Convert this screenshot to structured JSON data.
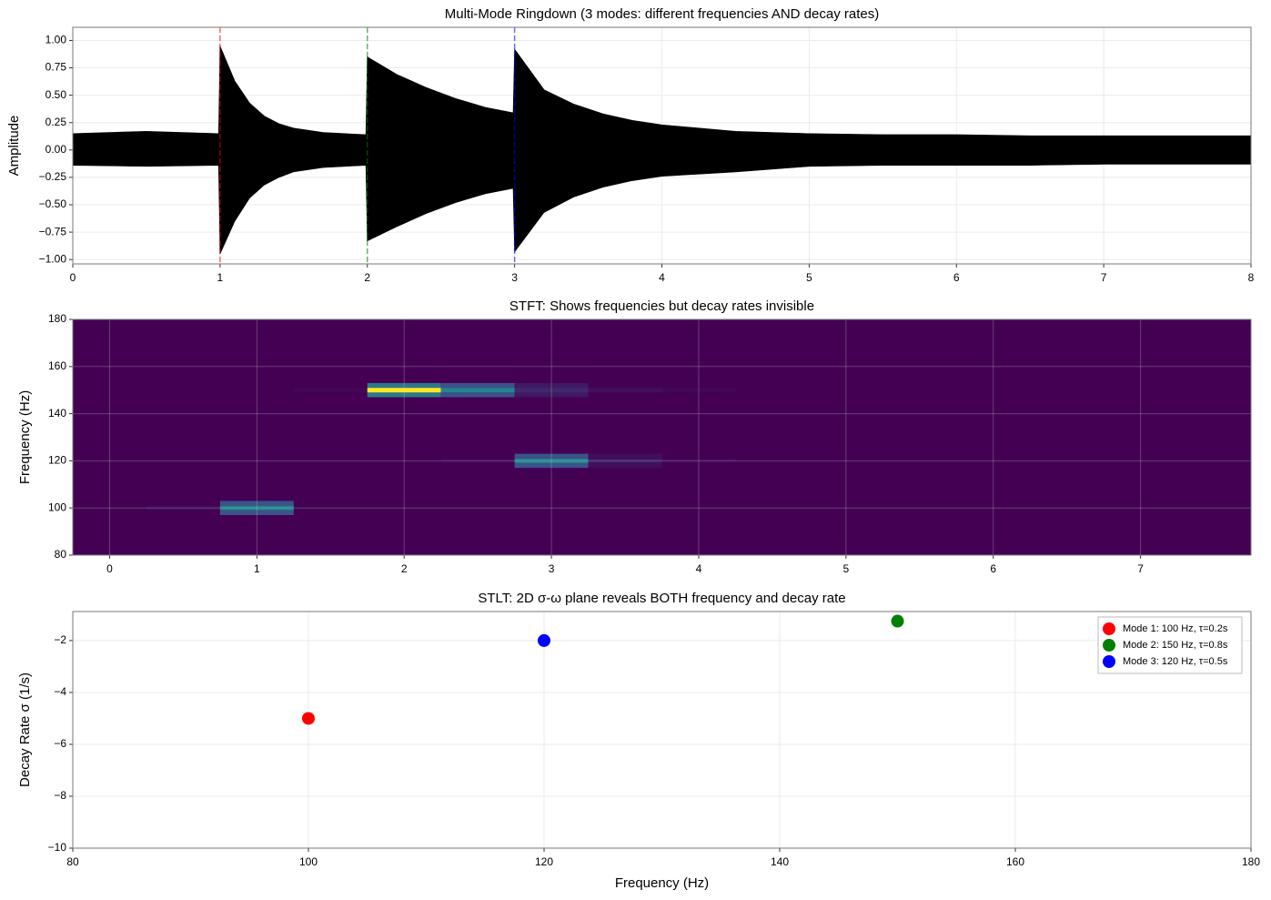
{
  "chart_data": [
    {
      "type": "envelope",
      "title": "Multi-Mode Ringdown (3 modes: different frequencies AND decay rates)",
      "ylabel": "Amplitude",
      "x": [
        0,
        0.5,
        0.99,
        1,
        1.1,
        1.2,
        1.3,
        1.4,
        1.5,
        1.7,
        1.99,
        2,
        2.2,
        2.4,
        2.6,
        2.8,
        2.99,
        3,
        3.2,
        3.4,
        3.6,
        3.8,
        4,
        4.5,
        5,
        5.5,
        6,
        6.5,
        7,
        7.5,
        8
      ],
      "series": [
        {
          "color": "#000000",
          "values": [
            0.15,
            0.17,
            0.15,
            0.95,
            0.63,
            0.43,
            0.31,
            0.24,
            0.2,
            0.16,
            0.14,
            0.85,
            0.69,
            0.57,
            0.47,
            0.39,
            0.34,
            0.92,
            0.55,
            0.42,
            0.33,
            0.27,
            0.23,
            0.17,
            0.15,
            0.14,
            0.14,
            0.13,
            0.13,
            0.13,
            0.13
          ]
        },
        {
          "color": "#000000",
          "values": [
            -0.14,
            -0.15,
            -0.14,
            -0.95,
            -0.65,
            -0.44,
            -0.32,
            -0.25,
            -0.2,
            -0.16,
            -0.14,
            -0.83,
            -0.7,
            -0.58,
            -0.48,
            -0.4,
            -0.35,
            -0.93,
            -0.57,
            -0.43,
            -0.34,
            -0.28,
            -0.24,
            -0.2,
            -0.15,
            -0.14,
            -0.14,
            -0.14,
            -0.13,
            -0.13,
            -0.13
          ]
        }
      ],
      "vlines": [
        {
          "x": 1,
          "color": "#ff0000"
        },
        {
          "x": 2,
          "color": "#008000"
        },
        {
          "x": 3,
          "color": "#0000ff"
        }
      ],
      "xlim": [
        0,
        8
      ],
      "xticks": [
        0,
        1,
        2,
        3,
        4,
        5,
        6,
        7,
        8
      ],
      "ylim": [
        -1.04,
        1.12
      ],
      "yticks": [
        {
          "value": -1,
          "label": "−1.00"
        },
        {
          "value": -0.75,
          "label": "−0.75"
        },
        {
          "value": -0.5,
          "label": "−0.50"
        },
        {
          "value": -0.25,
          "label": "−0.25"
        },
        {
          "value": 0,
          "label": "0.00"
        },
        {
          "value": 0.25,
          "label": "0.25"
        },
        {
          "value": 0.5,
          "label": "0.50"
        },
        {
          "value": 0.75,
          "label": "0.75"
        },
        {
          "value": 1,
          "label": "1.00"
        }
      ],
      "grid": true
    },
    {
      "type": "heatmap",
      "title": "STFT: Shows frequencies but decay rates invisible",
      "ylabel": "Frequency (Hz)",
      "colormap": "viridis",
      "x": [
        0.5,
        1,
        1,
        1,
        1.5,
        2,
        2,
        2,
        2.5,
        2.5,
        2.5,
        2.5,
        3,
        3,
        3,
        3,
        3,
        3,
        3.5,
        3.5,
        3.5,
        3.5,
        4,
        4
      ],
      "y": [
        100,
        98,
        100,
        102,
        150,
        148,
        150,
        152,
        148,
        150,
        152,
        120,
        148,
        150,
        152,
        118,
        120,
        122,
        150,
        120,
        118,
        122,
        150,
        120
      ],
      "values": [
        0.03,
        0.25,
        0.45,
        0.25,
        0.02,
        0.4,
        1.0,
        0.4,
        0.25,
        0.45,
        0.25,
        0.02,
        0.07,
        0.12,
        0.07,
        0.25,
        0.45,
        0.25,
        0.04,
        0.08,
        0.04,
        0.04,
        0.02,
        0.02
      ],
      "xlim": [
        -0.25,
        7.75
      ],
      "xticks": [
        0,
        1,
        2,
        3,
        4,
        5,
        6,
        7
      ],
      "ylim": [
        80,
        180
      ],
      "yticks": [
        80,
        100,
        120,
        140,
        160,
        180
      ],
      "grid": true
    },
    {
      "type": "scatter",
      "title": "STLT: 2D σ-ω plane reveals BOTH frequency and decay rate",
      "xlabel": "Frequency (Hz)",
      "ylabel": "Decay Rate σ (1/s)",
      "series": [
        {
          "name": "Mode 1: 100 Hz, τ=0.2s",
          "color": "#ff0000",
          "x": [
            100
          ],
          "values": [
            -5
          ]
        },
        {
          "name": "Mode 2: 150 Hz, τ=0.8s",
          "color": "#008000",
          "x": [
            150
          ],
          "values": [
            -1.25
          ]
        },
        {
          "name": "Mode 3: 120 Hz, τ=0.5s",
          "color": "#0000ff",
          "x": [
            120
          ],
          "values": [
            -2
          ]
        }
      ],
      "xlim": [
        80,
        180
      ],
      "xticks": [
        80,
        100,
        120,
        140,
        160,
        180
      ],
      "ylim": [
        -10,
        -0.88
      ],
      "yticks": [
        {
          "value": -10,
          "label": "−10"
        },
        {
          "value": -8,
          "label": "−8"
        },
        {
          "value": -6,
          "label": "−6"
        },
        {
          "value": -4,
          "label": "−4"
        },
        {
          "value": -2,
          "label": "−2"
        }
      ],
      "grid": true,
      "legend": "upper right"
    }
  ]
}
